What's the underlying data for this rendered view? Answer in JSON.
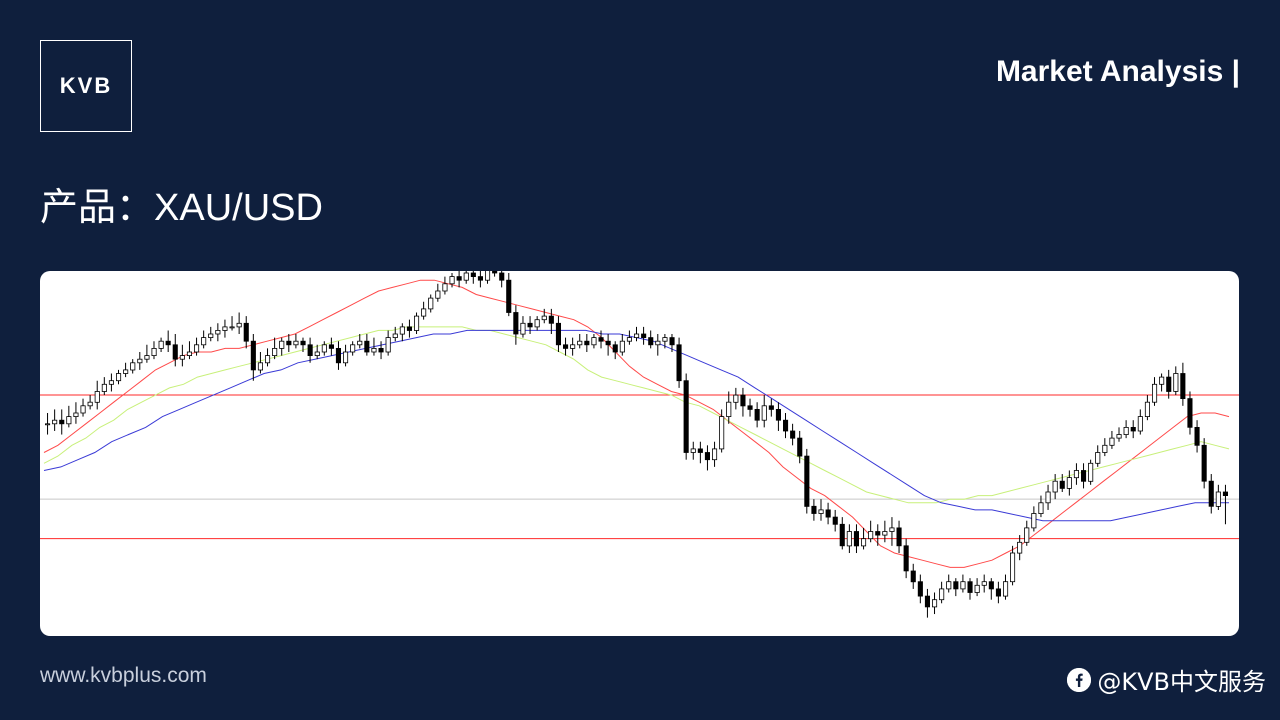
{
  "brand": {
    "logo_text": "KVB"
  },
  "header": {
    "title": "Market Analysis |"
  },
  "product": {
    "label": "产品：XAU/USD"
  },
  "footer": {
    "website": "www.kvbplus.com",
    "social_handle": "@KVB中文服务",
    "social_icon": "facebook-icon"
  },
  "colors": {
    "background": "#0f1f3d",
    "ma_fast": "#ff4a4a",
    "ma_mid": "#c8f07a",
    "ma_slow": "#3a3ad6",
    "level_line": "#ff2a2a",
    "bull_candle": "#ffffff",
    "bear_candle": "#000000"
  },
  "chart_data": {
    "type": "candlestick",
    "title": "",
    "xlabel": "",
    "ylabel": "",
    "grid": false,
    "ylim": [
      0,
      100
    ],
    "horizontal_levels": [
      {
        "value": 66,
        "color": "red"
      },
      {
        "value": 37,
        "color": "gray"
      },
      {
        "value": 26,
        "color": "red"
      }
    ],
    "candles": [
      [
        58,
        58,
        61,
        55
      ],
      [
        58,
        59,
        62,
        56
      ],
      [
        59,
        58,
        62,
        55
      ],
      [
        58,
        60,
        63,
        57
      ],
      [
        60,
        61,
        64,
        58
      ],
      [
        61,
        63,
        65,
        60
      ],
      [
        63,
        64,
        66,
        62
      ],
      [
        64,
        67,
        70,
        62
      ],
      [
        67,
        69,
        71,
        66
      ],
      [
        69,
        70,
        72,
        67
      ],
      [
        70,
        72,
        73,
        69
      ],
      [
        72,
        73,
        75,
        71
      ],
      [
        73,
        75,
        76,
        72
      ],
      [
        75,
        76,
        78,
        73
      ],
      [
        76,
        77,
        80,
        75
      ],
      [
        77,
        79,
        81,
        76
      ],
      [
        79,
        81,
        82,
        78
      ],
      [
        81,
        80,
        84,
        78
      ],
      [
        80,
        76,
        83,
        74
      ],
      [
        76,
        77,
        80,
        74
      ],
      [
        77,
        78,
        81,
        76
      ],
      [
        78,
        80,
        82,
        77
      ],
      [
        80,
        82,
        84,
        79
      ],
      [
        82,
        83,
        85,
        81
      ],
      [
        83,
        84,
        86,
        81
      ],
      [
        84,
        85,
        87,
        82
      ],
      [
        85,
        85,
        88,
        84
      ],
      [
        85,
        86,
        89,
        83
      ],
      [
        86,
        81,
        88,
        79
      ],
      [
        81,
        73,
        83,
        70
      ],
      [
        73,
        75,
        78,
        72
      ],
      [
        75,
        77,
        79,
        74
      ],
      [
        77,
        79,
        82,
        76
      ],
      [
        79,
        81,
        82,
        77
      ],
      [
        81,
        80,
        83,
        78
      ],
      [
        80,
        81,
        83,
        79
      ],
      [
        81,
        80,
        82,
        78
      ],
      [
        80,
        77,
        82,
        75
      ],
      [
        77,
        78,
        80,
        76
      ],
      [
        78,
        80,
        81,
        77
      ],
      [
        80,
        79,
        82,
        77
      ],
      [
        79,
        75,
        81,
        73
      ],
      [
        75,
        78,
        80,
        74
      ],
      [
        78,
        80,
        81,
        77
      ],
      [
        80,
        81,
        83,
        79
      ],
      [
        81,
        78,
        83,
        77
      ],
      [
        78,
        79,
        82,
        77
      ],
      [
        79,
        78,
        81,
        76
      ],
      [
        78,
        82,
        84,
        77
      ],
      [
        82,
        83,
        85,
        81
      ],
      [
        83,
        85,
        86,
        81
      ],
      [
        85,
        84,
        87,
        82
      ],
      [
        84,
        88,
        89,
        83
      ],
      [
        88,
        90,
        92,
        87
      ],
      [
        90,
        93,
        94,
        89
      ],
      [
        93,
        95,
        97,
        92
      ],
      [
        95,
        97,
        99,
        94
      ],
      [
        97,
        99,
        100,
        96
      ],
      [
        99,
        98,
        101,
        96
      ],
      [
        98,
        100,
        102,
        97
      ],
      [
        100,
        99,
        103,
        97
      ],
      [
        99,
        98,
        101,
        96
      ],
      [
        98,
        101,
        102,
        97
      ],
      [
        101,
        100,
        103,
        99
      ],
      [
        100,
        98,
        103,
        96
      ],
      [
        98,
        89,
        100,
        88
      ],
      [
        89,
        83,
        91,
        80
      ],
      [
        83,
        86,
        88,
        82
      ],
      [
        86,
        85,
        88,
        83
      ],
      [
        85,
        87,
        88,
        84
      ],
      [
        87,
        88,
        90,
        86
      ],
      [
        88,
        86,
        90,
        83
      ],
      [
        86,
        80,
        88,
        78
      ],
      [
        80,
        79,
        82,
        77
      ],
      [
        79,
        80,
        82,
        77
      ],
      [
        80,
        81,
        83,
        79
      ],
      [
        81,
        80,
        83,
        78
      ],
      [
        80,
        82,
        83,
        79
      ],
      [
        82,
        81,
        84,
        79
      ],
      [
        81,
        80,
        83,
        77
      ],
      [
        80,
        78,
        81,
        76
      ],
      [
        78,
        81,
        83,
        77
      ],
      [
        81,
        82,
        84,
        80
      ],
      [
        82,
        83,
        85,
        81
      ],
      [
        83,
        82,
        85,
        80
      ],
      [
        82,
        80,
        84,
        79
      ],
      [
        80,
        81,
        83,
        77
      ],
      [
        81,
        82,
        83,
        79
      ],
      [
        82,
        80,
        83,
        78
      ],
      [
        80,
        70,
        82,
        68
      ],
      [
        70,
        50,
        72,
        48
      ],
      [
        50,
        51,
        53,
        48
      ],
      [
        51,
        50,
        53,
        47
      ],
      [
        50,
        48,
        52,
        45
      ],
      [
        48,
        51,
        53,
        46
      ],
      [
        51,
        60,
        62,
        50
      ],
      [
        60,
        64,
        67,
        58
      ],
      [
        64,
        66,
        68,
        62
      ],
      [
        66,
        63,
        68,
        60
      ],
      [
        63,
        62,
        65,
        60
      ],
      [
        62,
        59,
        64,
        57
      ],
      [
        59,
        63,
        66,
        57
      ],
      [
        63,
        62,
        65,
        60
      ],
      [
        62,
        59,
        64,
        56
      ],
      [
        59,
        56,
        61,
        54
      ],
      [
        56,
        54,
        58,
        52
      ],
      [
        54,
        49,
        56,
        47
      ],
      [
        49,
        35,
        51,
        33
      ],
      [
        35,
        33,
        37,
        31
      ],
      [
        33,
        34,
        37,
        31
      ],
      [
        34,
        32,
        36,
        30
      ],
      [
        32,
        30,
        34,
        28
      ],
      [
        30,
        24,
        32,
        23
      ],
      [
        24,
        28,
        30,
        22
      ],
      [
        28,
        24,
        30,
        22
      ],
      [
        24,
        26,
        29,
        23
      ],
      [
        26,
        28,
        31,
        25
      ],
      [
        28,
        27,
        30,
        24
      ],
      [
        27,
        28,
        31,
        25
      ],
      [
        28,
        29,
        32,
        24
      ],
      [
        29,
        24,
        31,
        22
      ],
      [
        24,
        17,
        26,
        15
      ],
      [
        17,
        14,
        19,
        12
      ],
      [
        14,
        10,
        16,
        8
      ],
      [
        10,
        7,
        12,
        4
      ],
      [
        7,
        9,
        11,
        5
      ],
      [
        9,
        12,
        14,
        8
      ],
      [
        12,
        14,
        16,
        11
      ],
      [
        14,
        12,
        15,
        10
      ],
      [
        12,
        14,
        16,
        11
      ],
      [
        14,
        11,
        15,
        9
      ],
      [
        11,
        13,
        15,
        10
      ],
      [
        13,
        14,
        16,
        11
      ],
      [
        14,
        12,
        15,
        9
      ],
      [
        12,
        10,
        14,
        8
      ],
      [
        10,
        14,
        16,
        9
      ],
      [
        14,
        22,
        24,
        13
      ],
      [
        22,
        25,
        27,
        20
      ],
      [
        25,
        29,
        31,
        24
      ],
      [
        29,
        33,
        35,
        28
      ],
      [
        33,
        36,
        38,
        32
      ],
      [
        36,
        39,
        41,
        34
      ],
      [
        39,
        42,
        44,
        37
      ],
      [
        42,
        40,
        44,
        39
      ],
      [
        40,
        43,
        45,
        38
      ],
      [
        43,
        45,
        47,
        41
      ],
      [
        45,
        42,
        47,
        40
      ],
      [
        42,
        47,
        48,
        41
      ],
      [
        47,
        50,
        52,
        46
      ],
      [
        50,
        52,
        54,
        49
      ],
      [
        52,
        54,
        56,
        51
      ],
      [
        54,
        55,
        57,
        53
      ],
      [
        55,
        57,
        59,
        54
      ],
      [
        57,
        56,
        59,
        54
      ],
      [
        56,
        60,
        62,
        55
      ],
      [
        60,
        64,
        66,
        59
      ],
      [
        64,
        69,
        71,
        63
      ],
      [
        69,
        71,
        72,
        67
      ],
      [
        71,
        67,
        73,
        65
      ],
      [
        67,
        72,
        74,
        66
      ],
      [
        72,
        65,
        75,
        63
      ],
      [
        65,
        57,
        67,
        55
      ],
      [
        57,
        52,
        59,
        50
      ],
      [
        52,
        42,
        54,
        40
      ],
      [
        42,
        35,
        44,
        33
      ],
      [
        35,
        39,
        41,
        34
      ],
      [
        39,
        38,
        41,
        30
      ]
    ],
    "moving_averages": [
      {
        "color": "red",
        "values": [
          50,
          52,
          55,
          58,
          61,
          64,
          67,
          70,
          73,
          75,
          77,
          78,
          78,
          79,
          79,
          80,
          81,
          82,
          83,
          85,
          87,
          89,
          91,
          93,
          95,
          96,
          97,
          98,
          98,
          97,
          96,
          94,
          93,
          92,
          91,
          90,
          89,
          88,
          87,
          85,
          82,
          78,
          74,
          71,
          69,
          67,
          66,
          64,
          62,
          59,
          56,
          53,
          50,
          46,
          43,
          40,
          38,
          35,
          32,
          28,
          24,
          22,
          21,
          20,
          19,
          18,
          18,
          19,
          20,
          22,
          24,
          27,
          30,
          33,
          36,
          39,
          42,
          45,
          48,
          51,
          54,
          57,
          60,
          61,
          61,
          60
        ]
      },
      {
        "color": "yellow-green",
        "values": [
          47,
          49,
          52,
          54,
          57,
          59,
          62,
          64,
          66,
          68,
          69,
          71,
          72,
          73,
          74,
          75,
          76,
          77,
          78,
          79,
          80,
          81,
          82,
          83,
          84,
          84,
          85,
          85,
          85,
          85,
          85,
          84,
          84,
          83,
          82,
          81,
          80,
          78,
          76,
          73,
          71,
          70,
          69,
          68,
          67,
          66,
          64,
          63,
          61,
          59,
          57,
          55,
          53,
          51,
          49,
          47,
          45,
          43,
          41,
          39,
          38,
          37,
          36,
          36,
          36,
          37,
          37,
          38,
          38,
          39,
          40,
          41,
          42,
          43,
          44,
          45,
          46,
          47,
          48,
          49,
          50,
          51,
          52,
          53,
          52,
          51
        ]
      },
      {
        "color": "blue",
        "values": [
          45,
          46,
          48,
          50,
          53,
          55,
          57,
          60,
          62,
          64,
          66,
          68,
          70,
          72,
          73,
          75,
          76,
          77,
          78,
          79,
          80,
          81,
          82,
          83,
          83,
          84,
          84,
          84,
          84,
          84,
          84,
          84,
          84,
          83,
          83,
          82,
          81,
          79,
          77,
          75,
          73,
          71,
          68,
          65,
          62,
          59,
          56,
          53,
          50,
          47,
          44,
          41,
          38,
          36,
          35,
          34,
          34,
          33,
          32,
          31,
          31,
          31,
          31,
          31,
          32,
          33,
          34,
          35,
          36,
          36,
          36
        ]
      }
    ]
  }
}
